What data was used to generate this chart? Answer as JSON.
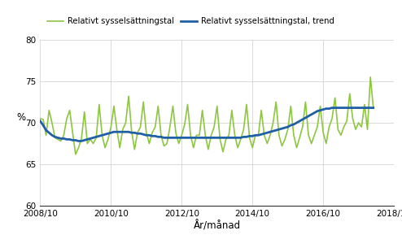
{
  "title": "",
  "ylabel": "%",
  "xlabel": "År/månad",
  "ylim": [
    60,
    80
  ],
  "yticks": [
    60,
    65,
    70,
    75,
    80
  ],
  "xtick_labels": [
    "2008/10",
    "2010/10",
    "2012/10",
    "2014/10",
    "2016/10",
    "2018/10"
  ],
  "legend_label_actual": "Relativt sysselsättningstal",
  "legend_label_trend": "Relativt sysselsättningstal, trend",
  "color_actual": "#8dc63f",
  "color_trend": "#1f5fa6",
  "linewidth_actual": 1.2,
  "linewidth_trend": 2.0,
  "actual_values": [
    70.5,
    70.4,
    68.5,
    71.5,
    70.0,
    68.2,
    68.0,
    67.8,
    68.5,
    70.5,
    71.5,
    68.8,
    66.2,
    67.0,
    68.1,
    71.3,
    67.5,
    68.0,
    67.5,
    68.2,
    72.2,
    68.5,
    67.0,
    68.0,
    69.5,
    72.0,
    69.2,
    67.0,
    69.2,
    70.0,
    73.2,
    69.0,
    66.8,
    68.8,
    69.5,
    72.5,
    68.8,
    67.5,
    68.8,
    69.5,
    72.0,
    68.5,
    67.2,
    67.5,
    69.5,
    72.0,
    68.8,
    67.5,
    68.5,
    69.8,
    72.2,
    68.5,
    67.0,
    68.5,
    68.5,
    71.5,
    68.5,
    66.8,
    68.5,
    69.5,
    72.0,
    68.0,
    66.5,
    68.0,
    68.5,
    71.5,
    68.5,
    67.0,
    68.0,
    69.2,
    72.2,
    68.2,
    67.0,
    68.5,
    68.5,
    71.5,
    68.5,
    67.5,
    68.5,
    70.0,
    72.5,
    68.5,
    67.2,
    68.0,
    69.2,
    72.0,
    68.5,
    67.0,
    68.2,
    69.5,
    72.5,
    68.5,
    67.5,
    68.5,
    69.5,
    72.0,
    68.8,
    67.5,
    69.5,
    70.5,
    73.0,
    69.2,
    68.5,
    69.5,
    70.2,
    73.5,
    70.5,
    69.2,
    70.0,
    69.5,
    72.2,
    69.2,
    75.5,
    71.8
  ],
  "trend_values": [
    70.2,
    69.7,
    69.1,
    68.8,
    68.5,
    68.3,
    68.2,
    68.1,
    68.1,
    68.0,
    68.0,
    67.9,
    67.9,
    67.8,
    67.8,
    67.9,
    68.0,
    68.1,
    68.2,
    68.3,
    68.4,
    68.5,
    68.6,
    68.7,
    68.8,
    68.9,
    68.9,
    68.9,
    68.9,
    68.9,
    68.9,
    68.8,
    68.8,
    68.7,
    68.7,
    68.6,
    68.5,
    68.5,
    68.4,
    68.4,
    68.3,
    68.3,
    68.2,
    68.2,
    68.2,
    68.2,
    68.2,
    68.2,
    68.2,
    68.2,
    68.2,
    68.2,
    68.2,
    68.2,
    68.2,
    68.2,
    68.2,
    68.2,
    68.2,
    68.2,
    68.2,
    68.2,
    68.2,
    68.2,
    68.2,
    68.2,
    68.2,
    68.2,
    68.2,
    68.3,
    68.3,
    68.4,
    68.4,
    68.5,
    68.5,
    68.6,
    68.7,
    68.8,
    68.9,
    69.0,
    69.1,
    69.2,
    69.3,
    69.4,
    69.5,
    69.7,
    69.8,
    70.0,
    70.2,
    70.4,
    70.6,
    70.8,
    71.0,
    71.2,
    71.4,
    71.5,
    71.6,
    71.7,
    71.7,
    71.8,
    71.8,
    71.8,
    71.8,
    71.8,
    71.8,
    71.8,
    71.8,
    71.8,
    71.8,
    71.8,
    71.8,
    71.8,
    71.8,
    71.8
  ]
}
